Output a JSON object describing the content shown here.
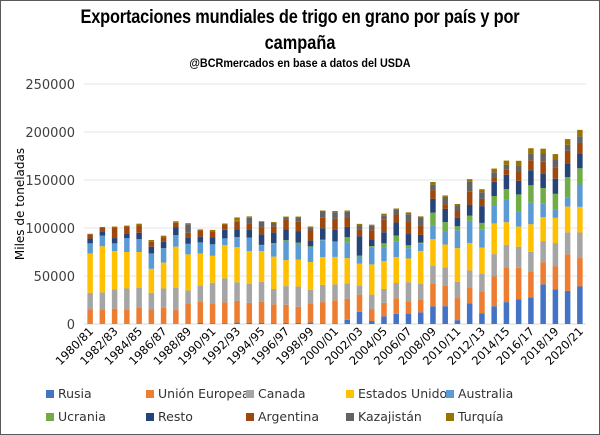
{
  "chart_data": {
    "type": "bar",
    "stacked": true,
    "title": "Exportaciones mundiales de trigo en grano por país y por campaña",
    "subtitle": "@BCRmercados en base a datos del USDA",
    "xlabel": "",
    "ylabel": "Miles de toneladas",
    "ylim": [
      0,
      250000
    ],
    "yticks": [
      "0",
      "50000",
      "100000",
      "150000",
      "200000",
      "250000"
    ],
    "grid": true,
    "legend_position": "bottom",
    "categories": [
      "1980/81",
      "1981/82",
      "1982/83",
      "1983/84",
      "1984/85",
      "1985/86",
      "1986/87",
      "1987/88",
      "1988/89",
      "1989/90",
      "1990/91",
      "1991/92",
      "1992/93",
      "1993/94",
      "1994/95",
      "1995/96",
      "1996/97",
      "1997/98",
      "1998/99",
      "1999/00",
      "2000/01",
      "2001/02",
      "2002/03",
      "2003/04",
      "2004/05",
      "2005/06",
      "2006/07",
      "2007/08",
      "2008/09",
      "2009/10",
      "2010/11",
      "2011/12",
      "2012/13",
      "2013/14",
      "2014/15",
      "2015/16",
      "2016/17",
      "2017/18",
      "2018/19",
      "2019/20",
      "2020/21"
    ],
    "xtick_labels": [
      "1980/81",
      "1982/83",
      "1984/85",
      "1986/87",
      "1988/89",
      "1990/91",
      "1992/93",
      "1994/95",
      "1996/97",
      "1998/99",
      "2000/01",
      "2002/03",
      "2004/05",
      "2006/07",
      "2008/09",
      "2010/11",
      "2012/13",
      "2014/15",
      "2016/17",
      "2018/19",
      "2020/21"
    ],
    "series": [
      {
        "name": "Rusia",
        "color": "#4472C4",
        "values": [
          0,
          0,
          0,
          0,
          0,
          0,
          0,
          0,
          0,
          1000,
          500,
          500,
          1500,
          1000,
          1000,
          500,
          1000,
          1000,
          1500,
          800,
          700,
          4400,
          12600,
          3100,
          8000,
          10700,
          10800,
          12200,
          18400,
          18600,
          4000,
          21600,
          11300,
          18500,
          22800,
          25500,
          27800,
          41400,
          35900,
          34500,
          39100
        ]
      },
      {
        "name": "Unión Europea",
        "color": "#ED7D31",
        "values": [
          15500,
          15000,
          16000,
          15000,
          17500,
          15500,
          17000,
          14500,
          21500,
          22000,
          21000,
          22000,
          22500,
          21000,
          22000,
          20000,
          19000,
          17000,
          20000,
          22000,
          24000,
          22000,
          18000,
          12000,
          14000,
          16000,
          13000,
          13500,
          24000,
          21000,
          23000,
          16500,
          22000,
          31000,
          35500,
          33000,
          27200,
          23000,
          24000,
          38000,
          29700
        ]
      },
      {
        "name": "Canada",
        "color": "#A5A5A5",
        "values": [
          17000,
          18000,
          20000,
          22000,
          20000,
          17000,
          20000,
          23000,
          13500,
          17000,
          21500,
          25000,
          19500,
          20000,
          21000,
          16000,
          19500,
          21000,
          14000,
          18000,
          16500,
          16000,
          9000,
          15500,
          14500,
          16000,
          19800,
          16000,
          18400,
          19200,
          17000,
          17700,
          18800,
          23300,
          24200,
          22000,
          20200,
          22000,
          24400,
          23000,
          26500
        ]
      },
      {
        "name": "Estados Unidos",
        "color": "#FFC000",
        "values": [
          41000,
          48000,
          40000,
          38000,
          37500,
          25000,
          27000,
          43000,
          37500,
          33500,
          28000,
          34700,
          36500,
          34000,
          31900,
          33700,
          27000,
          28000,
          29000,
          29000,
          28700,
          26200,
          23200,
          31500,
          29000,
          27000,
          24700,
          34400,
          27500,
          24000,
          35000,
          28600,
          27500,
          32000,
          23500,
          21000,
          28700,
          24900,
          26300,
          26800,
          26700
        ]
      },
      {
        "name": "Australia",
        "color": "#5B9BD5",
        "values": [
          10500,
          11000,
          8000,
          14500,
          13500,
          16000,
          15000,
          12000,
          11000,
          11500,
          12000,
          7000,
          9500,
          13600,
          6000,
          13000,
          19400,
          15800,
          15200,
          17500,
          16000,
          16500,
          7500,
          18000,
          14600,
          16000,
          10700,
          7500,
          14700,
          14000,
          18500,
          23000,
          18500,
          18700,
          23300,
          16100,
          22500,
          14400,
          9000,
          9700,
          23300
        ]
      },
      {
        "name": "Ucrania",
        "color": "#70AD47",
        "values": [
          0,
          0,
          0,
          0,
          0,
          0,
          0,
          0,
          0,
          0,
          0,
          0,
          1000,
          500,
          500,
          1000,
          1500,
          2000,
          1200,
          500,
          100,
          5500,
          1000,
          1000,
          4000,
          6500,
          3000,
          1200,
          13000,
          9300,
          4300,
          5400,
          7200,
          9800,
          11200,
          17400,
          18100,
          16000,
          16000,
          21000,
          16900
        ]
      },
      {
        "name": "Resto",
        "color": "#264478",
        "values": [
          5000,
          4500,
          5500,
          5000,
          6500,
          7000,
          6500,
          8000,
          6500,
          6000,
          7500,
          9000,
          8000,
          8500,
          11000,
          11000,
          11000,
          12000,
          6000,
          12000,
          12000,
          10500,
          20200,
          7000,
          11500,
          13500,
          11700,
          8000,
          14300,
          13800,
          9000,
          11200,
          17500,
          14900,
          15000,
          14100,
          15700,
          14600,
          15600,
          14500,
          14900
        ]
      },
      {
        "name": "Argentina",
        "color": "#9E480E",
        "values": [
          4500,
          4000,
          10500,
          7000,
          8000,
          5000,
          5000,
          5000,
          5000,
          6500,
          6000,
          5500,
          8000,
          6000,
          7200,
          6500,
          10000,
          9600,
          10500,
          11400,
          11500,
          9800,
          6500,
          9700,
          13500,
          8400,
          12500,
          10200,
          9200,
          5000,
          7400,
          13800,
          7500,
          3900,
          5300,
          9800,
          10300,
          12700,
          11400,
          13000,
          11500
        ]
      },
      {
        "name": "Kazajistán",
        "color": "#636363",
        "values": [
          0,
          0,
          0,
          0,
          0,
          0,
          0,
          0,
          9000,
          0,
          0,
          0,
          1000,
          6000,
          6000,
          3500,
          2500,
          4000,
          3000,
          6000,
          7000,
          6000,
          5000,
          4500,
          4200,
          4700,
          8200,
          8000,
          6000,
          7500,
          5300,
          10900,
          7000,
          6000,
          5000,
          6300,
          7400,
          8600,
          8800,
          6200,
          6900
        ]
      },
      {
        "name": "Turquía",
        "color": "#997300",
        "values": [
          500,
          500,
          1500,
          1000,
          1500,
          2000,
          1500,
          1500,
          1000,
          1000,
          1500,
          1000,
          3500,
          1500,
          500,
          1000,
          1000,
          1500,
          1200,
          1000,
          1200,
          1300,
          1300,
          1200,
          1600,
          1500,
          1900,
          1100,
          2400,
          1500,
          1500,
          2200,
          3100,
          3800,
          4400,
          4800,
          5200,
          5000,
          5600,
          5900,
          6700
        ]
      }
    ]
  }
}
